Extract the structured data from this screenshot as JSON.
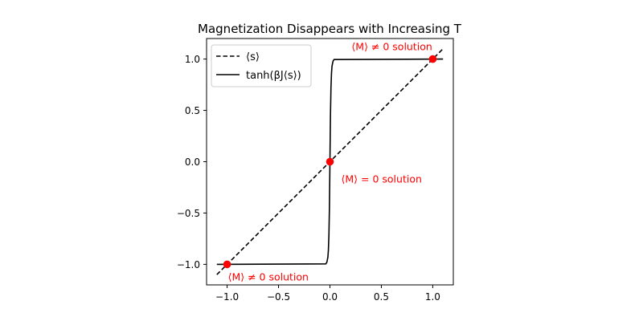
{
  "chart_data": {
    "type": "line",
    "title": "Magnetization Disappears with Increasing T",
    "xlabel": "",
    "ylabel": "",
    "xlim": [
      -1.2,
      1.2
    ],
    "ylim": [
      -1.2,
      1.2
    ],
    "xticks": [
      -1.0,
      -0.5,
      0.0,
      0.5,
      1.0
    ],
    "xtick_labels": [
      "−1.0",
      "−0.5",
      "0.0",
      "0.5",
      "1.0"
    ],
    "yticks": [
      -1.0,
      -0.5,
      0.0,
      0.5,
      1.0
    ],
    "ytick_labels": [
      "−1.0",
      "−0.5",
      "0.0",
      "0.5",
      "1.0"
    ],
    "grid": false,
    "legend_position": "top-left",
    "series": [
      {
        "name": "⟨s⟩",
        "style": "dashed",
        "color": "#000000",
        "x": [
          -1.1,
          1.1
        ],
        "y": [
          -1.1,
          1.1
        ]
      },
      {
        "name": "tanh(βJ⟨s⟩)",
        "style": "solid",
        "color": "#000000",
        "x": [
          -1.1,
          -0.04,
          -0.03,
          -0.02,
          -0.015,
          -0.01,
          -0.005,
          0.0,
          0.005,
          0.01,
          0.015,
          0.02,
          0.03,
          0.04,
          1.1
        ],
        "y": [
          -1.0,
          -0.995,
          -0.98,
          -0.93,
          -0.86,
          -0.72,
          -0.45,
          0.0,
          0.45,
          0.72,
          0.86,
          0.93,
          0.98,
          0.995,
          1.0
        ]
      }
    ],
    "points": {
      "color": "#ff0000",
      "x": [
        -1.0,
        0.0,
        1.0
      ],
      "y": [
        -1.0,
        0.0,
        1.0
      ]
    },
    "annotations": [
      {
        "text": "⟨M⟩ ≠ 0 solution",
        "x": 1.0,
        "y": 1.0,
        "anchor": "above-left"
      },
      {
        "text": "⟨M⟩ = 0 solution",
        "x": 0.0,
        "y": 0.0,
        "anchor": "below-right"
      },
      {
        "text": "⟨M⟩ ≠ 0 solution",
        "x": -1.0,
        "y": -1.0,
        "anchor": "below-right"
      }
    ],
    "annotation_color": "#ff0000"
  }
}
